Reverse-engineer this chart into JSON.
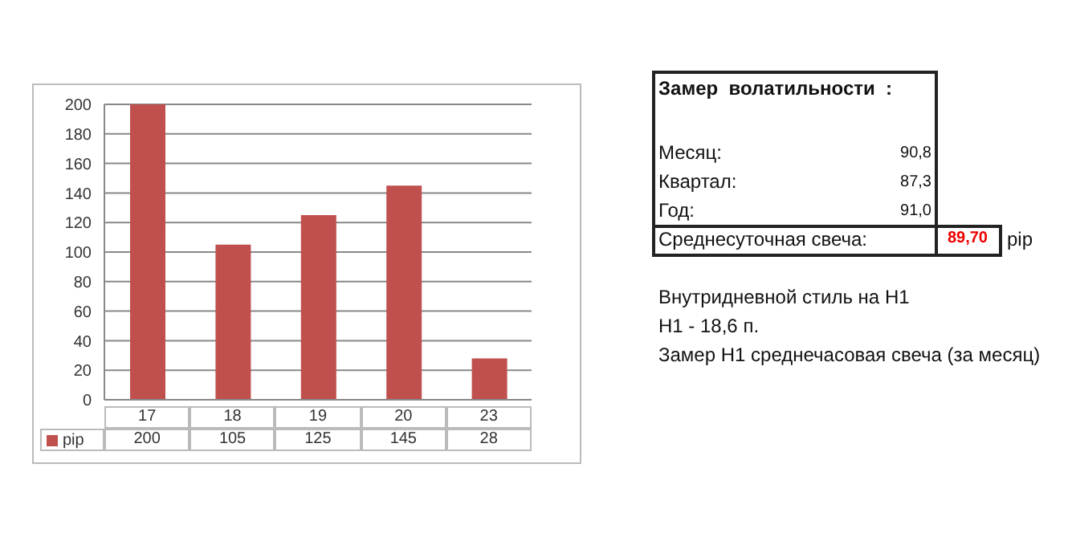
{
  "chart_data": {
    "type": "bar",
    "categories": [
      "17",
      "18",
      "19",
      "20",
      "23"
    ],
    "series": [
      {
        "name": "pip",
        "color": "#c0504d",
        "values": [
          200,
          105,
          125,
          145,
          28
        ]
      }
    ],
    "ylim": [
      0,
      200
    ],
    "yticks": [
      0,
      20,
      40,
      60,
      80,
      100,
      120,
      140,
      160,
      180,
      200
    ],
    "grid": "y",
    "legend": "bottom",
    "data_labels": true,
    "annotations": [
      "Замер  волатильности  :",
      "Месяц:",
      "90,8",
      "Квартал:",
      "87,3",
      "Год:",
      "91,0",
      "Среднесуточная свеча:",
      "89,70",
      "pip",
      "Внутридневной стиль на H1",
      "H1 - 18,6 п.",
      "Замер H1 среднечасовая свеча (за месяц)"
    ]
  }
}
